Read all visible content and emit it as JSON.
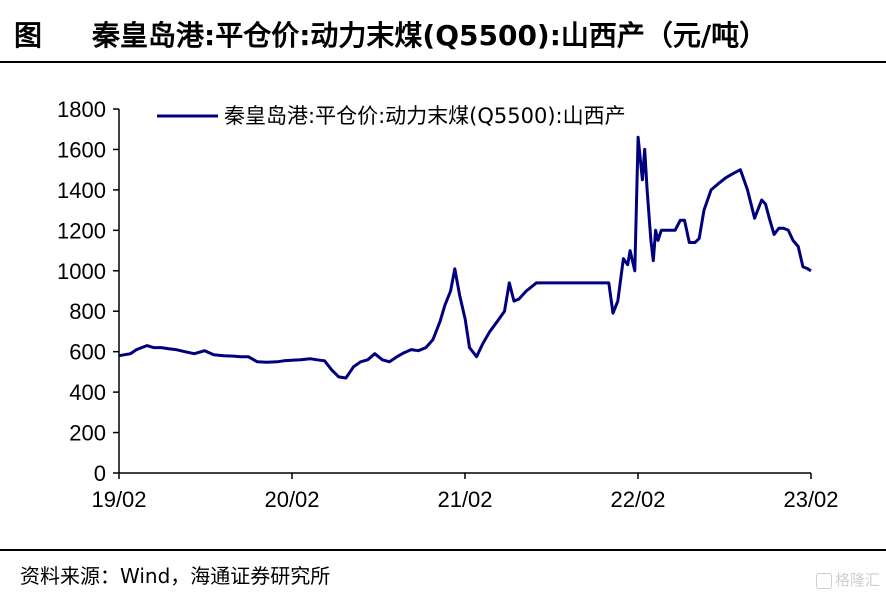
{
  "header": {
    "label": "图",
    "title": "秦皇岛港:平仓价:动力末煤(Q5500):山西产（元/吨）"
  },
  "chart_data": {
    "type": "line",
    "title": "秦皇岛港:平仓价:动力末煤(Q5500):山西产（元/吨）",
    "xlabel": "",
    "ylabel": "",
    "ylim": [
      0,
      1800
    ],
    "yticks": [
      0,
      200,
      400,
      600,
      800,
      1000,
      1200,
      1400,
      1600,
      1800
    ],
    "xticks": [
      "19/02",
      "20/02",
      "21/02",
      "22/02",
      "23/02"
    ],
    "xlim": [
      "2019-02",
      "2023-02"
    ],
    "grid": false,
    "legend": "top-center",
    "series": [
      {
        "name": "秦皇岛港:平仓价:动力末煤(Q5500):山西产",
        "color": "#00007f",
        "x": [
          "2019-02-01",
          "2019-02-25",
          "2019-03-10",
          "2019-04-01",
          "2019-04-15",
          "2019-05-01",
          "2019-05-15",
          "2019-06-01",
          "2019-06-20",
          "2019-07-10",
          "2019-08-01",
          "2019-08-20",
          "2019-09-10",
          "2019-10-01",
          "2019-10-15",
          "2019-11-01",
          "2019-11-20",
          "2019-12-10",
          "2020-01-01",
          "2020-01-15",
          "2020-02-01",
          "2020-02-20",
          "2020-03-10",
          "2020-03-25",
          "2020-04-10",
          "2020-04-25",
          "2020-05-10",
          "2020-05-25",
          "2020-06-10",
          "2020-06-25",
          "2020-07-10",
          "2020-07-25",
          "2020-08-10",
          "2020-08-25",
          "2020-09-10",
          "2020-09-25",
          "2020-10-10",
          "2020-10-25",
          "2020-11-10",
          "2020-11-25",
          "2020-12-10",
          "2020-12-20",
          "2021-01-01",
          "2021-01-10",
          "2021-01-20",
          "2021-02-01",
          "2021-02-10",
          "2021-02-25",
          "2021-03-10",
          "2021-03-25",
          "2021-04-10",
          "2021-04-25",
          "2021-05-05",
          "2021-05-15",
          "2021-05-25",
          "2021-06-10",
          "2021-07-01",
          "2021-12-01",
          "2021-12-10",
          "2021-12-20",
          "2022-01-01",
          "2022-01-10",
          "2022-01-15",
          "2022-01-25",
          "2022-02-01",
          "2022-02-10",
          "2022-02-15",
          "2022-02-20",
          "2022-02-28",
          "2022-03-05",
          "2022-03-10",
          "2022-03-15",
          "2022-03-22",
          "2022-03-28",
          "2022-04-05",
          "2022-04-20",
          "2022-05-01",
          "2022-05-10",
          "2022-05-20",
          "2022-06-01",
          "2022-06-10",
          "2022-06-20",
          "2022-07-05",
          "2022-07-20",
          "2022-08-05",
          "2022-08-20",
          "2022-09-05",
          "2022-09-20",
          "2022-10-05",
          "2022-10-20",
          "2022-10-28",
          "2022-11-05",
          "2022-11-15",
          "2022-11-25",
          "2022-12-05",
          "2022-12-15",
          "2022-12-25",
          "2023-01-05",
          "2023-01-15",
          "2023-01-25",
          "2023-02-01"
        ],
        "values": [
          580,
          590,
          610,
          630,
          620,
          620,
          615,
          610,
          600,
          590,
          605,
          585,
          580,
          578,
          575,
          575,
          550,
          548,
          550,
          555,
          558,
          560,
          565,
          560,
          555,
          510,
          475,
          470,
          525,
          550,
          560,
          590,
          560,
          550,
          575,
          595,
          610,
          605,
          620,
          660,
          750,
          830,
          900,
          1010,
          880,
          760,
          620,
          575,
          640,
          700,
          750,
          800,
          940,
          850,
          860,
          900,
          940,
          940,
          790,
          850,
          1060,
          1030,
          1100,
          1000,
          1660,
          1450,
          1600,
          1400,
          1150,
          1050,
          1200,
          1150,
          1200,
          1200,
          1200,
          1200,
          1250,
          1250,
          1140,
          1140,
          1160,
          1300,
          1400,
          1430,
          1460,
          1480,
          1500,
          1400,
          1260,
          1350,
          1330,
          1260,
          1180,
          1210,
          1210,
          1200,
          1150,
          1120,
          1020,
          1010,
          1000
        ]
      }
    ]
  },
  "footer": {
    "source": "资料来源：Wind，海通证券研究所"
  },
  "watermark": {
    "text": "格隆汇"
  }
}
